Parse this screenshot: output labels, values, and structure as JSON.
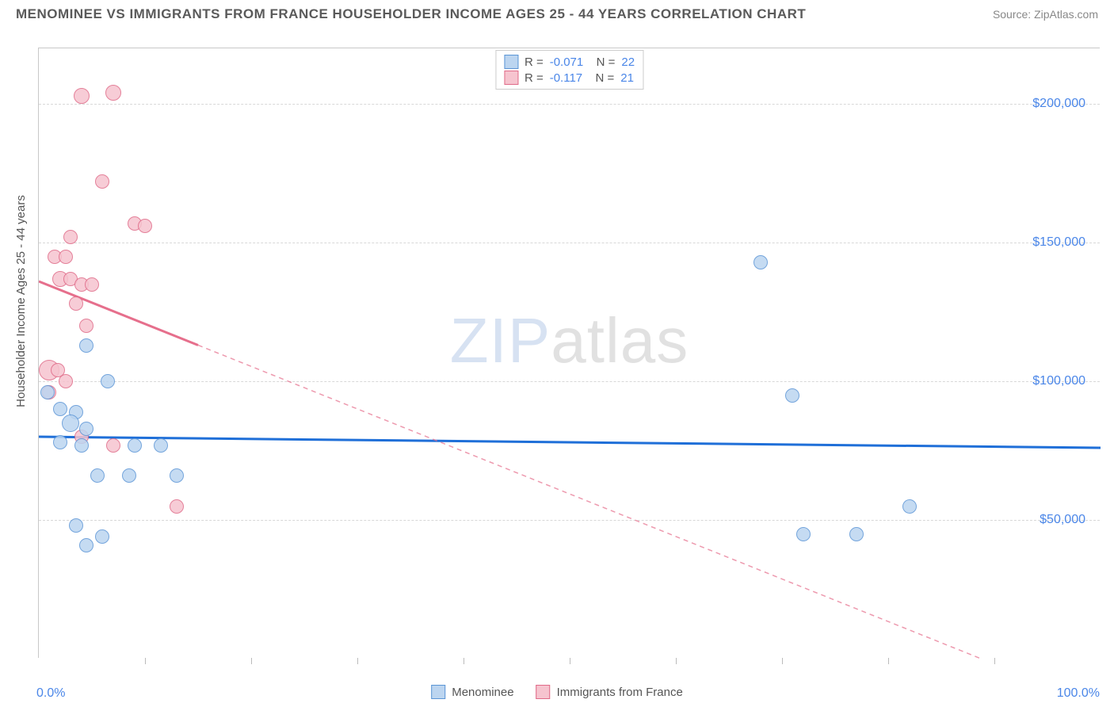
{
  "title": "MENOMINEE VS IMMIGRANTS FROM FRANCE HOUSEHOLDER INCOME AGES 25 - 44 YEARS CORRELATION CHART",
  "source": "Source: ZipAtlas.com",
  "watermark": {
    "zip": "ZIP",
    "rest": "atlas"
  },
  "yaxis": {
    "label": "Householder Income Ages 25 - 44 years"
  },
  "chart": {
    "type": "scatter",
    "background_color": "#ffffff",
    "grid_color": "#d8d8d8",
    "xlim": [
      0,
      100
    ],
    "ylim": [
      0,
      220000
    ],
    "x_ticks_minor": [
      10,
      20,
      30,
      40,
      50,
      60,
      70,
      80,
      90
    ],
    "x_ticks_label": [
      {
        "value": 0,
        "label": "0.0%"
      },
      {
        "value": 100,
        "label": "100.0%"
      }
    ],
    "y_ticks": [
      {
        "value": 50000,
        "label": "$50,000"
      },
      {
        "value": 100000,
        "label": "$100,000"
      },
      {
        "value": 150000,
        "label": "$150,000"
      },
      {
        "value": 200000,
        "label": "$200,000"
      }
    ],
    "series": [
      {
        "name": "Menominee",
        "fill_color": "#bcd5f0",
        "stroke_color": "#5b95d6",
        "trend_color": "#1f6fd8",
        "trend_dash": "none",
        "stats": {
          "R": "-0.071",
          "N": "22"
        },
        "trend": {
          "x1": 0,
          "y1": 80000,
          "x2": 100,
          "y2": 76000,
          "solid_until_x": 100
        },
        "points": [
          {
            "x": 0.8,
            "y": 96000,
            "r": 9
          },
          {
            "x": 2.0,
            "y": 90000,
            "r": 9
          },
          {
            "x": 3.5,
            "y": 89000,
            "r": 9
          },
          {
            "x": 4.5,
            "y": 113000,
            "r": 9
          },
          {
            "x": 3.0,
            "y": 85000,
            "r": 11
          },
          {
            "x": 6.5,
            "y": 100000,
            "r": 9
          },
          {
            "x": 4.5,
            "y": 83000,
            "r": 9
          },
          {
            "x": 2.0,
            "y": 78000,
            "r": 9
          },
          {
            "x": 4.0,
            "y": 77000,
            "r": 9
          },
          {
            "x": 9.0,
            "y": 77000,
            "r": 9
          },
          {
            "x": 11.5,
            "y": 77000,
            "r": 9
          },
          {
            "x": 5.5,
            "y": 66000,
            "r": 9
          },
          {
            "x": 8.5,
            "y": 66000,
            "r": 9
          },
          {
            "x": 13.0,
            "y": 66000,
            "r": 9
          },
          {
            "x": 3.5,
            "y": 48000,
            "r": 9
          },
          {
            "x": 4.5,
            "y": 41000,
            "r": 9
          },
          {
            "x": 6.0,
            "y": 44000,
            "r": 9
          },
          {
            "x": 68.0,
            "y": 143000,
            "r": 9
          },
          {
            "x": 71.0,
            "y": 95000,
            "r": 9
          },
          {
            "x": 72.0,
            "y": 45000,
            "r": 9
          },
          {
            "x": 77.0,
            "y": 45000,
            "r": 9
          },
          {
            "x": 82.0,
            "y": 55000,
            "r": 9
          }
        ]
      },
      {
        "name": "Immigrants from France",
        "fill_color": "#f6c4cf",
        "stroke_color": "#e06a88",
        "trend_color": "#e66f8c",
        "trend_dash": "6,5",
        "stats": {
          "R": "-0.117",
          "N": "21"
        },
        "trend": {
          "x1": 0,
          "y1": 136000,
          "x2": 92,
          "y2": -5000,
          "solid_until_x": 15
        },
        "points": [
          {
            "x": 4.0,
            "y": 203000,
            "r": 10
          },
          {
            "x": 7.0,
            "y": 204000,
            "r": 10
          },
          {
            "x": 6.0,
            "y": 172000,
            "r": 9
          },
          {
            "x": 3.0,
            "y": 152000,
            "r": 9
          },
          {
            "x": 9.0,
            "y": 157000,
            "r": 9
          },
          {
            "x": 10.0,
            "y": 156000,
            "r": 9
          },
          {
            "x": 1.5,
            "y": 145000,
            "r": 9
          },
          {
            "x": 2.5,
            "y": 145000,
            "r": 9
          },
          {
            "x": 2.0,
            "y": 137000,
            "r": 10
          },
          {
            "x": 3.0,
            "y": 137000,
            "r": 9
          },
          {
            "x": 4.0,
            "y": 135000,
            "r": 9
          },
          {
            "x": 5.0,
            "y": 135000,
            "r": 9
          },
          {
            "x": 3.5,
            "y": 128000,
            "r": 9
          },
          {
            "x": 4.5,
            "y": 120000,
            "r": 9
          },
          {
            "x": 1.0,
            "y": 104000,
            "r": 13
          },
          {
            "x": 1.8,
            "y": 104000,
            "r": 9
          },
          {
            "x": 2.5,
            "y": 100000,
            "r": 9
          },
          {
            "x": 1.0,
            "y": 96000,
            "r": 9
          },
          {
            "x": 4.0,
            "y": 80000,
            "r": 9
          },
          {
            "x": 7.0,
            "y": 77000,
            "r": 9
          },
          {
            "x": 13.0,
            "y": 55000,
            "r": 9
          }
        ]
      }
    ]
  }
}
